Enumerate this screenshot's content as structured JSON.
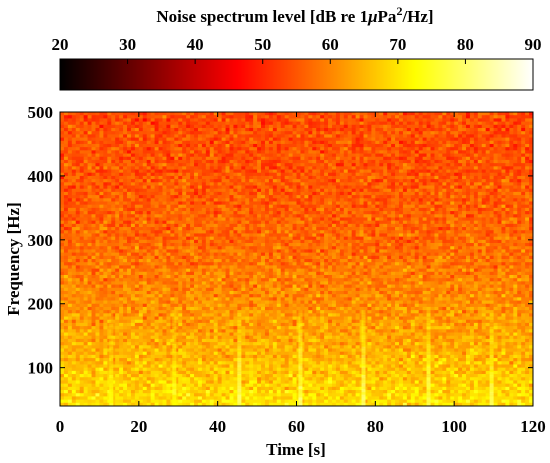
{
  "chart_data": {
    "type": "heatmap",
    "title": "",
    "xlabel": "Time [s]",
    "ylabel": "Frequency [Hz]",
    "xlim": [
      0,
      120
    ],
    "ylim": [
      40,
      500
    ],
    "x_ticks": [
      "0",
      "20",
      "40",
      "60",
      "80",
      "100",
      "120"
    ],
    "x_tick_values": [
      0,
      20,
      40,
      60,
      80,
      100,
      120
    ],
    "y_ticks": [
      "100",
      "200",
      "300",
      "400",
      "500"
    ],
    "y_tick_values": [
      100,
      200,
      300,
      400,
      500
    ],
    "colormap": "hot",
    "colorbar": {
      "label_prefix": "Noise spectrum level [dB re 1",
      "label_mu": "μ",
      "label_unit": "Pa",
      "label_sup": "2",
      "label_suffix": "/Hz]",
      "range": [
        20,
        90
      ],
      "ticks": [
        "20",
        "30",
        "40",
        "50",
        "60",
        "70",
        "80",
        "90"
      ],
      "tick_values": [
        20,
        30,
        40,
        50,
        60,
        70,
        80,
        90
      ],
      "placement": "top"
    },
    "level_profile": {
      "frequency_hz": [
        40,
        100,
        200,
        300,
        400,
        500
      ],
      "level_db": [
        70,
        66,
        61,
        57,
        55,
        54
      ]
    },
    "transient_events": {
      "time_s": [
        13,
        29,
        45.5,
        61,
        77,
        93.5,
        109.5
      ],
      "frequency_range_hz": [
        40,
        190
      ],
      "peak_level_db": [
        74,
        75,
        80,
        80,
        80,
        79,
        78
      ]
    }
  }
}
